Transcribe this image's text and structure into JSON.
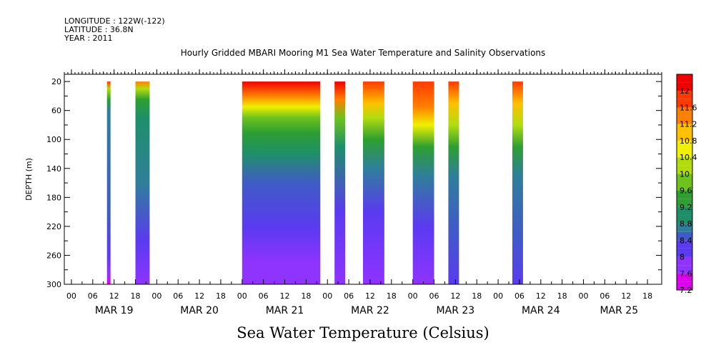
{
  "header": {
    "longitude": "LONGITUDE : 122W(-122)",
    "latitude": "LATITUDE : 36.8N",
    "year": "YEAR : 2011"
  },
  "chart_data": {
    "type": "heatmap",
    "title": "Hourly Gridded MBARI Mooring M1 Sea Water Temperature and Salinity Observations",
    "xlabel": "Sea Water Temperature (Celsius)",
    "ylabel": "DEPTH (m)",
    "x_range_hours": [
      -2,
      166
    ],
    "ylim": [
      300,
      10
    ],
    "y_ticks": [
      20,
      60,
      100,
      140,
      180,
      220,
      260,
      300
    ],
    "x_tick_labels": [
      "00",
      "06",
      "12",
      "18",
      "00",
      "06",
      "12",
      "18",
      "00",
      "06",
      "12",
      "18",
      "00",
      "06",
      "12",
      "18",
      "00",
      "06",
      "12",
      "18",
      "00",
      "06",
      "12",
      "18",
      "00",
      "06",
      "12",
      "18"
    ],
    "date_labels": [
      {
        "label": "MAR 19",
        "hour": 12
      },
      {
        "label": "MAR 20",
        "hour": 36
      },
      {
        "label": "MAR 21",
        "hour": 60
      },
      {
        "label": "MAR 22",
        "hour": 84
      },
      {
        "label": "MAR 23",
        "hour": 108
      },
      {
        "label": "MAR 24",
        "hour": 132
      },
      {
        "label": "MAR 25",
        "hour": 154
      }
    ],
    "colorbar": {
      "min": 7.2,
      "max": 12.4,
      "step": 0.2,
      "tick_labels": [
        "12",
        "11.6",
        "11.2",
        "10.8",
        "10.4",
        "10",
        "9.6",
        "9.2",
        "8.8",
        "8.4",
        "8",
        "7.6",
        "7.2"
      ],
      "stops": [
        {
          "v": 7.2,
          "c": "#dd00ee"
        },
        {
          "v": 7.6,
          "c": "#8f33ff"
        },
        {
          "v": 8.0,
          "c": "#5a3bf0"
        },
        {
          "v": 8.4,
          "c": "#3f5cc6"
        },
        {
          "v": 8.6,
          "c": "#2f7f9a"
        },
        {
          "v": 8.8,
          "c": "#1f8f6a"
        },
        {
          "v": 9.2,
          "c": "#2e9f30"
        },
        {
          "v": 9.6,
          "c": "#6ec21e"
        },
        {
          "v": 10.0,
          "c": "#b2dc10"
        },
        {
          "v": 10.4,
          "c": "#f0f000"
        },
        {
          "v": 10.8,
          "c": "#ffc000"
        },
        {
          "v": 11.2,
          "c": "#ff8000"
        },
        {
          "v": 11.6,
          "c": "#ff3a00"
        },
        {
          "v": 12.0,
          "c": "#f00000"
        },
        {
          "v": 12.4,
          "c": "#a00000"
        }
      ]
    },
    "segments": [
      {
        "start": 10,
        "end": 11,
        "profile": [
          [
            20,
            11.6
          ],
          [
            30,
            10.0
          ],
          [
            45,
            9.2
          ],
          [
            60,
            8.6
          ],
          [
            200,
            8.4
          ],
          [
            260,
            8.2
          ],
          [
            285,
            7.6
          ],
          [
            300,
            7.2
          ]
        ]
      },
      {
        "start": 18,
        "end": 22,
        "profile": [
          [
            20,
            11.4
          ],
          [
            30,
            10.2
          ],
          [
            45,
            9.4
          ],
          [
            70,
            8.8
          ],
          [
            160,
            8.6
          ],
          [
            240,
            8.2
          ],
          [
            300,
            7.8
          ]
        ]
      },
      {
        "start": 48,
        "end": 70,
        "profile": [
          [
            20,
            12.0
          ],
          [
            40,
            11.4
          ],
          [
            55,
            10.4
          ],
          [
            70,
            9.8
          ],
          [
            90,
            9.2
          ],
          [
            120,
            8.8
          ],
          [
            160,
            8.4
          ],
          [
            220,
            8.2
          ],
          [
            270,
            7.9
          ],
          [
            300,
            7.6
          ]
        ]
      },
      {
        "start": 74,
        "end": 77,
        "profile": [
          [
            20,
            12.0
          ],
          [
            45,
            11.2
          ],
          [
            70,
            9.8
          ],
          [
            110,
            8.8
          ],
          [
            200,
            8.2
          ],
          [
            300,
            7.9
          ]
        ]
      },
      {
        "start": 82,
        "end": 88,
        "profile": [
          [
            20,
            11.8
          ],
          [
            50,
            11.0
          ],
          [
            70,
            10.0
          ],
          [
            100,
            9.2
          ],
          [
            140,
            8.6
          ],
          [
            200,
            8.2
          ],
          [
            300,
            7.9
          ]
        ]
      },
      {
        "start": 96,
        "end": 102,
        "profile": [
          [
            20,
            11.8
          ],
          [
            55,
            11.2
          ],
          [
            80,
            10.4
          ],
          [
            110,
            9.4
          ],
          [
            150,
            8.6
          ],
          [
            220,
            8.2
          ],
          [
            300,
            7.9
          ]
        ]
      },
      {
        "start": 106,
        "end": 109,
        "profile": [
          [
            20,
            11.8
          ],
          [
            50,
            11.0
          ],
          [
            80,
            10.0
          ],
          [
            110,
            9.2
          ],
          [
            150,
            8.6
          ],
          [
            220,
            8.4
          ],
          [
            300,
            8.2
          ]
        ]
      },
      {
        "start": 124,
        "end": 127,
        "profile": [
          [
            20,
            11.6
          ],
          [
            50,
            10.8
          ],
          [
            80,
            10.0
          ],
          [
            110,
            9.2
          ],
          [
            150,
            8.6
          ],
          [
            230,
            8.4
          ],
          [
            300,
            8.2
          ]
        ]
      }
    ]
  }
}
